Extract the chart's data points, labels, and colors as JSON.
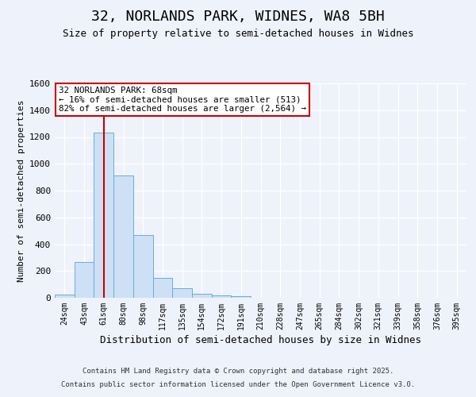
{
  "title_line1": "32, NORLANDS PARK, WIDNES, WA8 5BH",
  "title_line2": "Size of property relative to semi-detached houses in Widnes",
  "xlabel": "Distribution of semi-detached houses by size in Widnes",
  "ylabel": "Number of semi-detached properties",
  "footer_line1": "Contains HM Land Registry data © Crown copyright and database right 2025.",
  "footer_line2": "Contains public sector information licensed under the Open Government Licence v3.0.",
  "categories": [
    "24sqm",
    "43sqm",
    "61sqm",
    "80sqm",
    "98sqm",
    "117sqm",
    "135sqm",
    "154sqm",
    "172sqm",
    "191sqm",
    "210sqm",
    "228sqm",
    "247sqm",
    "265sqm",
    "284sqm",
    "302sqm",
    "321sqm",
    "339sqm",
    "358sqm",
    "376sqm",
    "395sqm"
  ],
  "values": [
    25,
    265,
    1230,
    910,
    470,
    150,
    70,
    30,
    18,
    12,
    0,
    0,
    0,
    0,
    0,
    0,
    0,
    0,
    0,
    0,
    0
  ],
  "bar_color": "#cde0f5",
  "bar_edge_color": "#6aaed6",
  "red_line_index": 2,
  "annotation_text_line1": "32 NORLANDS PARK: 68sqm",
  "annotation_text_line2": "← 16% of semi-detached houses are smaller (513)",
  "annotation_text_line3": "82% of semi-detached houses are larger (2,564) →",
  "ylim": [
    0,
    1600
  ],
  "yticks": [
    0,
    200,
    400,
    600,
    800,
    1000,
    1200,
    1400,
    1600
  ],
  "background_color": "#eef2fb",
  "plot_bg_color": "#eef2fb",
  "grid_color": "#ffffff",
  "annotation_box_facecolor": "#ffffff",
  "annotation_box_edgecolor": "#cc0000",
  "red_line_color": "#cc0000",
  "title_fontsize": 13,
  "subtitle_fontsize": 9,
  "xlabel_fontsize": 9,
  "ylabel_fontsize": 8,
  "tick_fontsize": 8,
  "xtick_fontsize": 7,
  "footer_fontsize": 6.5
}
